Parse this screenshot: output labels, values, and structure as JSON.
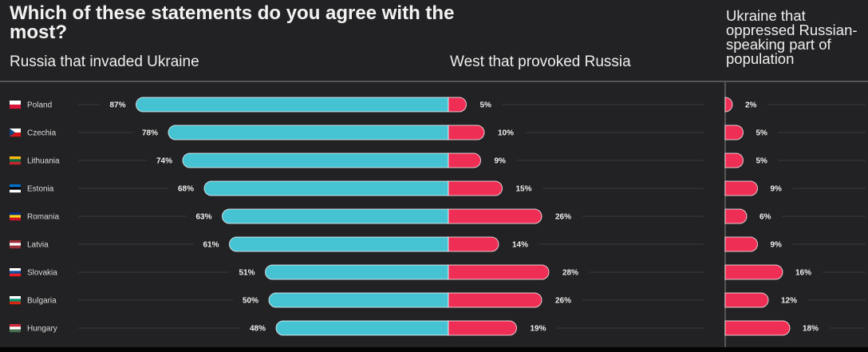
{
  "chart_data": {
    "type": "bar",
    "title": "Which of these statements do you agree with the most?",
    "series": [
      {
        "name": "Russia that invaded Ukraine",
        "color": "#45c3d3",
        "values": [
          87,
          78,
          74,
          68,
          63,
          61,
          51,
          50,
          48
        ]
      },
      {
        "name": "West that provoked Russia",
        "color": "#ee2e55",
        "values": [
          5,
          10,
          9,
          15,
          26,
          14,
          28,
          26,
          19
        ]
      },
      {
        "name": "Ukraine that oppressed Russian-speaking part of population",
        "color": "#ee2e55",
        "values": [
          2,
          5,
          5,
          9,
          6,
          9,
          16,
          12,
          18
        ]
      }
    ],
    "categories": [
      "Poland",
      "Czechia",
      "Lithuania",
      "Estonia",
      "Romania",
      "Latvia",
      "Slovakia",
      "Bulgaria",
      "Hungary"
    ],
    "unit": "%"
  },
  "flags": {
    "Poland": [
      "#ffffff",
      "#dc143c"
    ],
    "Czechia": [
      "#ffffff",
      "#d7141a"
    ],
    "Lithuania": [
      "#fdb913",
      "#006a44",
      "#c1272d"
    ],
    "Estonia": [
      "#0072ce",
      "#000000",
      "#ffffff"
    ],
    "Romania": [
      "#002b7f",
      "#fcd116",
      "#ce1126"
    ],
    "Latvia": [
      "#9e3039",
      "#ffffff",
      "#9e3039"
    ],
    "Slovakia": [
      "#ffffff",
      "#0b4ea2",
      "#ee1c25"
    ],
    "Bulgaria": [
      "#ffffff",
      "#00966e",
      "#d62612"
    ],
    "Hungary": [
      "#ce2939",
      "#ffffff",
      "#477050"
    ]
  }
}
